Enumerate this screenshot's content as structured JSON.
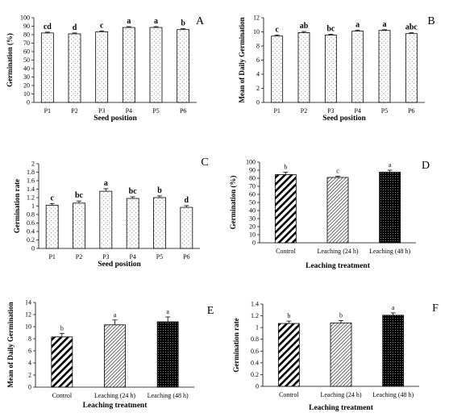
{
  "chart_data": [
    {
      "panel": "A",
      "type": "bar",
      "categories": [
        "P1",
        "P2",
        "P3",
        "P4",
        "P5",
        "P6"
      ],
      "values": [
        82,
        81,
        83.5,
        88.5,
        88.5,
        86
      ],
      "errors": [
        1,
        1,
        1,
        1,
        1,
        1
      ],
      "letters": [
        "cd",
        "d",
        "c",
        "a",
        "a",
        "b"
      ],
      "xlabel": "Seed position",
      "ylabel": "Germination (%)",
      "ylim": [
        0,
        100
      ],
      "ticks": [
        0,
        10,
        20,
        30,
        40,
        50,
        60,
        70,
        80,
        90,
        100
      ],
      "pattern": "dots"
    },
    {
      "panel": "B",
      "type": "bar",
      "categories": [
        "P1",
        "P2",
        "P3",
        "P4",
        "P5",
        "P6"
      ],
      "values": [
        9.4,
        9.9,
        9.55,
        10.1,
        10.2,
        9.75
      ],
      "errors": [
        0.15,
        0.15,
        0.12,
        0.15,
        0.1,
        0.12
      ],
      "letters": [
        "c",
        "ab",
        "bc",
        "a",
        "a",
        "abc"
      ],
      "xlabel": "Seed position",
      "ylabel": "Mean of Daily Germination",
      "ylim": [
        0,
        12
      ],
      "ticks": [
        0,
        2,
        4,
        6,
        8,
        10,
        12
      ],
      "pattern": "dots"
    },
    {
      "panel": "C",
      "type": "bar",
      "categories": [
        "P1",
        "P2",
        "P3",
        "P4",
        "P5",
        "P6"
      ],
      "values": [
        1.02,
        1.07,
        1.35,
        1.18,
        1.2,
        0.97
      ],
      "errors": [
        0.04,
        0.05,
        0.06,
        0.04,
        0.04,
        0.04
      ],
      "letters": [
        "c",
        "bc",
        "a",
        "bc",
        "b",
        "d"
      ],
      "xlabel": "Seed position",
      "ylabel": "Germination rate",
      "ylim": [
        0,
        2
      ],
      "ticks": [
        0,
        0.2,
        0.4,
        0.6,
        0.8,
        1,
        1.2,
        1.4,
        1.6,
        1.8,
        2
      ],
      "pattern": "dots"
    },
    {
      "panel": "D",
      "type": "bar",
      "categories": [
        "Control",
        "Leaching (24 h)",
        "Leaching (48 h)"
      ],
      "values": [
        84.5,
        81,
        87.5
      ],
      "errors": [
        3,
        1.5,
        2.5
      ],
      "letters": [
        "b",
        "c",
        "a"
      ],
      "xlabel": "Leaching treatment",
      "ylabel": "Germination (%)",
      "ylim": [
        0,
        100
      ],
      "ticks": [
        0,
        10,
        20,
        30,
        40,
        50,
        60,
        70,
        80,
        90,
        100
      ],
      "pattern": "treatment"
    },
    {
      "panel": "E",
      "type": "bar",
      "categories": [
        "Control",
        "Leaching (24 h)",
        "Leaching (48 h)"
      ],
      "values": [
        8.3,
        10.3,
        10.8
      ],
      "errors": [
        0.6,
        0.8,
        0.8
      ],
      "letters": [
        "b",
        "a",
        "a"
      ],
      "xlabel": "Leaching treatment",
      "ylabel": "Mean of Daily Germination",
      "ylim": [
        0,
        14
      ],
      "ticks": [
        0,
        2,
        4,
        6,
        8,
        10,
        12,
        14
      ],
      "pattern": "treatment"
    },
    {
      "panel": "F",
      "type": "bar",
      "categories": [
        "Control",
        "Leaching (24 h)",
        "Leaching (48 h)"
      ],
      "values": [
        1.07,
        1.08,
        1.21
      ],
      "errors": [
        0.04,
        0.04,
        0.04
      ],
      "letters": [
        "b",
        "b",
        "a"
      ],
      "xlabel": "Leaching treatment",
      "ylabel": "Germination rate",
      "ylim": [
        0,
        1.4
      ],
      "ticks": [
        0,
        0.2,
        0.4,
        0.6,
        0.8,
        1,
        1.2,
        1.4
      ],
      "pattern": "treatment"
    }
  ]
}
